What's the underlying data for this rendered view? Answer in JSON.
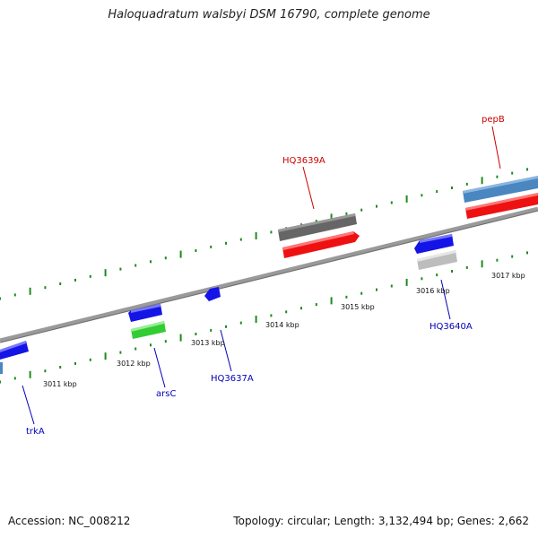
{
  "header": {
    "title": "Haloquadratum walsbyi DSM 16790, complete genome"
  },
  "footer": {
    "accession": "Accession: NC_008212",
    "summary": "Topology: circular; Length: 3,132,494 bp; Genes: 2,662"
  },
  "map": {
    "kbp_ticks": [
      {
        "label": "3011 kbp"
      },
      {
        "label": "3012 kbp"
      },
      {
        "label": "3013 kbp"
      },
      {
        "label": "3014 kbp"
      },
      {
        "label": "3015 kbp"
      },
      {
        "label": "3016 kbp"
      },
      {
        "label": "3017 kbp"
      }
    ],
    "gene_labels": [
      {
        "name": "pepB",
        "color": "#cc0000"
      },
      {
        "name": "HQ3639A",
        "color": "#cc0000"
      },
      {
        "name": "HQ3640A",
        "color": "#0000bb"
      },
      {
        "name": "HQ3637A",
        "color": "#0000bb"
      },
      {
        "name": "arsC",
        "color": "#0000bb"
      },
      {
        "name": "trkA",
        "color": "#0000bb"
      }
    ],
    "colors": {
      "backbone": "#8c8c8c",
      "tick_green": "#1e8a1e",
      "blue_gene": "#1414e6",
      "red_gene": "#ee1111",
      "dark_gray_gene": "#666666",
      "light_gray_gene": "#bdbdbd",
      "green_gene": "#33cc33",
      "steel_blue_gene": "#4a86c0"
    }
  }
}
